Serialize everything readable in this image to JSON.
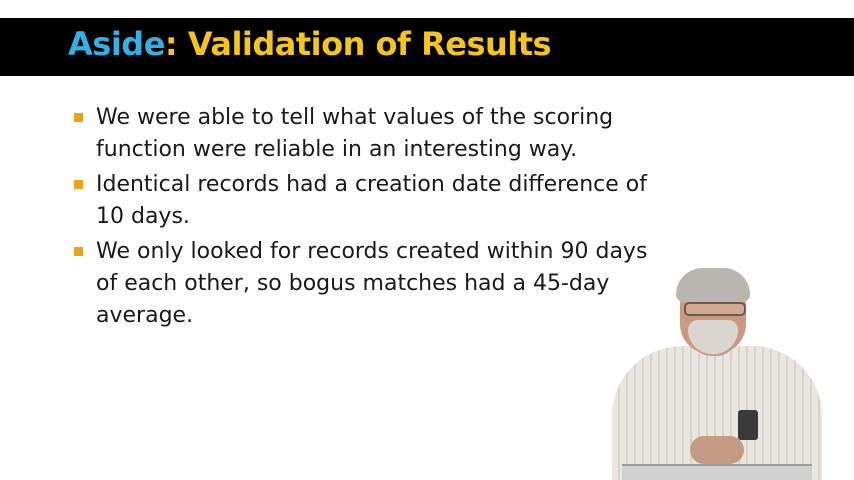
{
  "slide": {
    "title_part1": "Aside",
    "title_part2": ": Validation of Results",
    "bullets": [
      "We were able to tell what values of the scoring function were reliable in an interesting way.",
      "Identical records had a creation date difference of 10 days.",
      "We only looked for records created within 90 days of each other, so bogus matches had a 45-day average."
    ]
  },
  "colors": {
    "title_bar": "#000000",
    "title_accent_blue": "#35b0e6",
    "title_accent_yellow": "#f5c518",
    "bullet_marker": "#e8a31b"
  }
}
